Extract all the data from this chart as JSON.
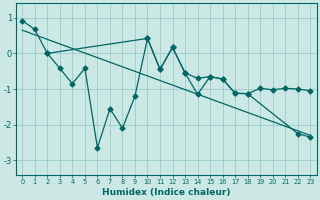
{
  "xlabel": "Humidex (Indice chaleur)",
  "bg_color": "#cce8e4",
  "grid_color": "#99cccc",
  "line_color": "#006666",
  "spine_color": "#006666",
  "xlim": [
    -0.5,
    23.5
  ],
  "ylim": [
    -3.4,
    1.4
  ],
  "yticks": [
    1,
    0,
    -1,
    -2,
    -3
  ],
  "xticks": [
    0,
    1,
    2,
    3,
    4,
    5,
    6,
    7,
    8,
    9,
    10,
    11,
    12,
    13,
    14,
    15,
    16,
    17,
    18,
    19,
    20,
    21,
    22,
    23
  ],
  "line1_x": [
    0,
    1,
    2,
    10,
    11,
    12,
    13,
    14,
    15,
    16,
    17,
    18,
    19,
    20,
    21,
    22,
    23
  ],
  "line1_y": [
    0.92,
    0.67,
    0.0,
    0.42,
    -0.45,
    0.17,
    -0.55,
    -0.7,
    -0.65,
    -0.72,
    -1.12,
    -1.13,
    -0.98,
    -1.02,
    -0.98,
    -1.0,
    -1.05
  ],
  "line2_x": [
    2,
    3,
    4,
    5,
    6,
    7,
    8,
    9,
    10,
    11,
    12,
    13,
    14,
    15,
    16,
    17,
    18,
    22,
    23
  ],
  "line2_y": [
    0.0,
    -0.42,
    -0.85,
    -0.42,
    -2.65,
    -1.55,
    -2.1,
    -1.2,
    0.42,
    -0.45,
    0.17,
    -0.55,
    -1.15,
    -0.65,
    -0.72,
    -1.12,
    -1.13,
    -2.25,
    -2.35
  ],
  "trend_x": [
    0,
    23
  ],
  "trend_y": [
    0.65,
    -2.3
  ]
}
